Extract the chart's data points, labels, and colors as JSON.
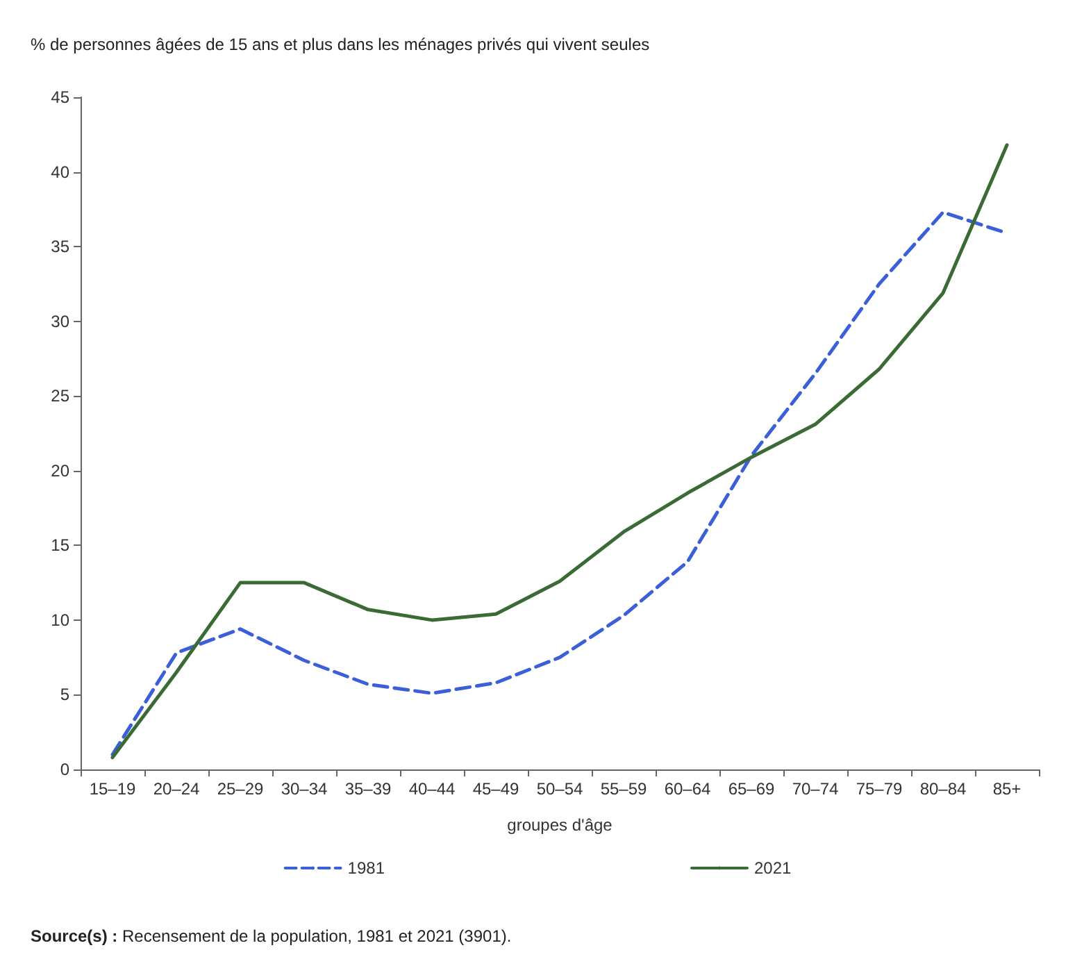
{
  "chart_data": {
    "type": "line",
    "ylabel": "% de personnes âgées de 15 ans et plus dans les ménages privés qui vivent seules",
    "xlabel": "groupes d'âge",
    "categories": [
      "15–19",
      "20–24",
      "25–29",
      "30–34",
      "35–39",
      "40–44",
      "45–49",
      "50–54",
      "55–59",
      "60–64",
      "65–69",
      "70–74",
      "75–79",
      "80–84",
      "85+"
    ],
    "series": [
      {
        "name": "1981",
        "color": "#3a5fd9",
        "line_style": "dashed",
        "values": [
          1.0,
          7.8,
          9.4,
          7.3,
          5.7,
          5.1,
          5.8,
          7.5,
          10.3,
          13.9,
          21.0,
          26.5,
          32.5,
          37.3,
          35.9
        ]
      },
      {
        "name": "2021",
        "color": "#3b6b35",
        "line_style": "solid",
        "values": [
          0.8,
          6.5,
          12.5,
          12.5,
          10.7,
          10.0,
          10.4,
          12.6,
          15.9,
          18.5,
          20.9,
          23.1,
          26.8,
          31.9,
          41.8
        ]
      }
    ],
    "ylim": [
      0,
      45
    ],
    "yticks": [
      0,
      5,
      10,
      15,
      20,
      25,
      30,
      35,
      40,
      45
    ],
    "grid": false,
    "legend": "bottom",
    "marker": "none",
    "annotations": [
      "Source(s) : Recensement de la population, 1981 et 2021 (3901)."
    ]
  }
}
